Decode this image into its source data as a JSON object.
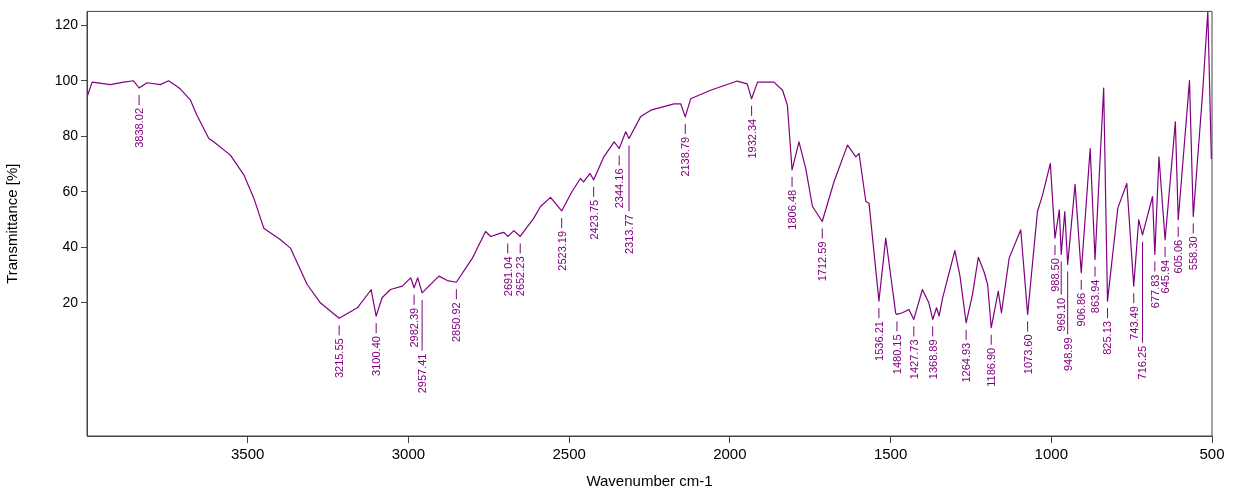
{
  "chart_data": {
    "type": "line",
    "xlabel": "Wavenumber cm-1",
    "ylabel": "Transmittance [%]",
    "xlim": [
      4000,
      500
    ],
    "ylim": [
      -28,
      125
    ],
    "xticks": [
      3500,
      3000,
      2500,
      2000,
      1500,
      1000,
      500
    ],
    "yticks": [
      20,
      40,
      60,
      80,
      100,
      120
    ],
    "grid": false,
    "legend": false,
    "marker": "none",
    "line_style": "solid",
    "series": [
      {
        "color": "#800080",
        "x": [
          3998,
          3984,
          3927,
          3886,
          3855,
          3838.02,
          3813,
          3772,
          3746,
          3710,
          3678,
          3658,
          3621,
          3606,
          3554,
          3512,
          3481,
          3450,
          3398,
          3367,
          3315,
          3274,
          3215.55,
          3159,
          3116,
          3100.4,
          3082,
          3056,
          3019,
          2993,
          2982.39,
          2971,
          2957.41,
          2942,
          2905,
          2879,
          2850.92,
          2801,
          2760,
          2744,
          2713,
          2703,
          2691.04,
          2672,
          2652.23,
          2610,
          2589,
          2558,
          2523.19,
          2491,
          2465,
          2455,
          2435,
          2423.75,
          2392,
          2360,
          2344.16,
          2324,
          2313.77,
          2278,
          2246,
          2174,
          2153,
          2138.79,
          2122,
          2060,
          1977,
          1946,
          1932.34,
          1914,
          1863,
          1836,
          1821,
          1806.48,
          1785,
          1764,
          1743,
          1712.59,
          1676,
          1634,
          1608,
          1598,
          1577,
          1567,
          1536.21,
          1515,
          1500,
          1484,
          1480.15,
          1463,
          1443,
          1427.73,
          1401,
          1381,
          1368.89,
          1357,
          1349,
          1338,
          1300,
          1284,
          1264.93,
          1245,
          1227,
          1209,
          1198,
          1186.9,
          1165,
          1155,
          1131,
          1095,
          1073.6,
          1043,
          1027,
          1003,
          988.5,
          975,
          969.1,
          958,
          948.99,
          926,
          906.86,
          879,
          863.94,
          837,
          825.13,
          793,
          765,
          743.49,
          728,
          716.25,
          685,
          677.83,
          665,
          645.94,
          614,
          605.06,
          570,
          558.3,
          529,
          513,
          502,
          500
        ],
        "values": [
          94.8,
          99.5,
          98.6,
          99.5,
          100,
          97.4,
          99.3,
          98.6,
          100,
          97.1,
          93,
          87.6,
          79.2,
          78,
          73.2,
          66.1,
          57.7,
          46.9,
          42.7,
          39.7,
          26.6,
          20,
          14.4,
          18.2,
          24.7,
          15.2,
          21.8,
          24.8,
          26,
          29,
          25.4,
          29,
          23.6,
          25.4,
          29.6,
          28,
          27.4,
          36.1,
          45.7,
          43.9,
          45.1,
          45.4,
          43.9,
          46,
          43.9,
          50.5,
          54.7,
          58,
          53.1,
          60.1,
          64.8,
          63.6,
          66.6,
          64.3,
          72.6,
          78,
          75.6,
          81.6,
          79.2,
          87,
          89.4,
          91.7,
          91.7,
          87,
          93.5,
          96.6,
          99.9,
          98.9,
          93.5,
          99.5,
          99.5,
          96.6,
          91.2,
          67.9,
          78,
          68.4,
          54.7,
          49.3,
          63.6,
          76.8,
          72.6,
          73.8,
          56.5,
          55.9,
          20.6,
          43.3,
          30.2,
          16.2,
          15.8,
          16.4,
          17.6,
          14,
          24.8,
          20,
          14,
          18.2,
          15.2,
          21.8,
          38.8,
          29.6,
          12.8,
          23,
          36.4,
          31.1,
          26.6,
          11,
          24.2,
          16.4,
          36.1,
          46.3,
          15.8,
          52.9,
          58.9,
          70.2,
          43.3,
          53.5,
          37.4,
          52.9,
          33.8,
          62.7,
          30.8,
          75.6,
          35.6,
          97.4,
          20.6,
          54.1,
          63,
          26,
          49.9,
          44.5,
          58.3,
          37.4,
          72.6,
          42.7,
          85.2,
          49.9,
          100.1,
          51.1,
          96,
          125,
          72,
          72
        ]
      }
    ],
    "annotations": [
      {
        "text": "3838.02",
        "x": 3838.02,
        "y": 97.4
      },
      {
        "text": "3215.55",
        "x": 3215.55,
        "y": 14.4
      },
      {
        "text": "3100.40",
        "x": 3100.4,
        "y": 15.2
      },
      {
        "text": "2982.39",
        "x": 2982.39,
        "y": 25.4
      },
      {
        "text": "2957.41",
        "x": 2957.41,
        "y": 23.6
      },
      {
        "text": "2850.92",
        "x": 2850.92,
        "y": 27.4
      },
      {
        "text": "2691.04",
        "x": 2691.04,
        "y": 43.9
      },
      {
        "text": "2652.23",
        "x": 2652.23,
        "y": 43.9
      },
      {
        "text": "2523.19",
        "x": 2523.19,
        "y": 53.1
      },
      {
        "text": "2423.75",
        "x": 2423.75,
        "y": 64.3
      },
      {
        "text": "2344.16",
        "x": 2344.16,
        "y": 75.6
      },
      {
        "text": "2313.77",
        "x": 2313.77,
        "y": 79.2
      },
      {
        "text": "2138.79",
        "x": 2138.79,
        "y": 87
      },
      {
        "text": "1932.34",
        "x": 1932.34,
        "y": 93.5
      },
      {
        "text": "1806.48",
        "x": 1806.48,
        "y": 67.9
      },
      {
        "text": "1712.59",
        "x": 1712.59,
        "y": 49.3
      },
      {
        "text": "1536.21",
        "x": 1536.21,
        "y": 20.6
      },
      {
        "text": "1480.15",
        "x": 1480.15,
        "y": 15.8
      },
      {
        "text": "1427.73",
        "x": 1427.73,
        "y": 14
      },
      {
        "text": "1368.89",
        "x": 1368.89,
        "y": 14
      },
      {
        "text": "1264.93",
        "x": 1264.93,
        "y": 12.8
      },
      {
        "text": "1186.90",
        "x": 1186.9,
        "y": 11
      },
      {
        "text": "1073.60",
        "x": 1073.6,
        "y": 15.8
      },
      {
        "text": "988.50",
        "x": 988.5,
        "y": 43.3
      },
      {
        "text": "969.10",
        "x": 969.1,
        "y": 37.4
      },
      {
        "text": "948.99",
        "x": 948.99,
        "y": 33.8
      },
      {
        "text": "906.86",
        "x": 906.86,
        "y": 30.8
      },
      {
        "text": "863.94",
        "x": 863.94,
        "y": 35.6
      },
      {
        "text": "825.13",
        "x": 825.13,
        "y": 20.6
      },
      {
        "text": "743.49",
        "x": 743.49,
        "y": 26
      },
      {
        "text": "716.25",
        "x": 716.25,
        "y": 44.5
      },
      {
        "text": "677.83",
        "x": 677.83,
        "y": 37.4
      },
      {
        "text": "645.94",
        "x": 645.94,
        "y": 42.7
      },
      {
        "text": "605.06",
        "x": 605.06,
        "y": 49.9
      },
      {
        "text": "558.30",
        "x": 558.3,
        "y": 51.1
      }
    ]
  }
}
